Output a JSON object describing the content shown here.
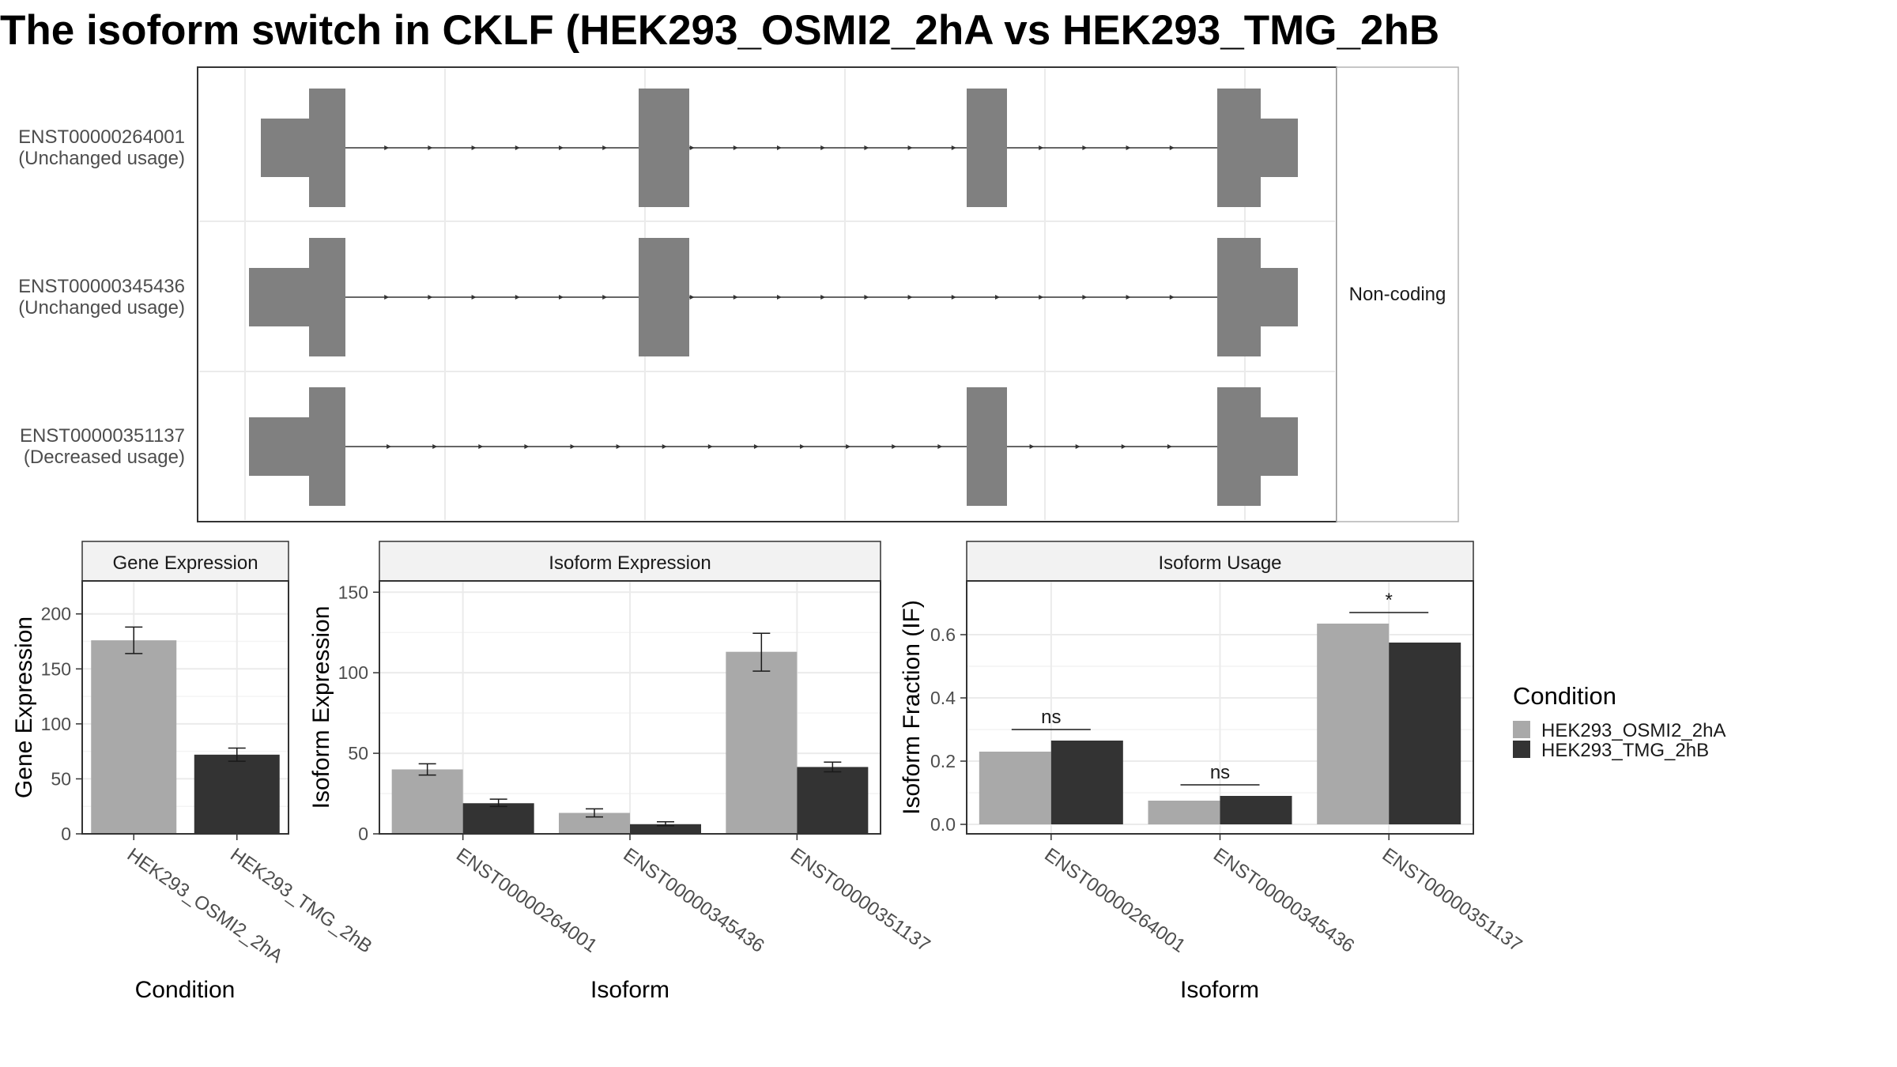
{
  "title": "The isoform switch in CKLF (HEK293_OSMI2_2hA vs HEK293_TMG_2hB",
  "colors": {
    "cond_a": "#a9a9a9",
    "cond_b": "#333333",
    "exon": "#808080",
    "grid": "#ebebeb",
    "strip": "#f2f2f2"
  },
  "structure": {
    "facet_label": "Non-coding",
    "isoforms": [
      {
        "id": "ENST00000264001",
        "usage": "(Unchanged usage)"
      },
      {
        "id": "ENST00000345436",
        "usage": "(Unchanged usage)"
      },
      {
        "id": "ENST00000351137",
        "usage": "(Decreased usage)"
      }
    ]
  },
  "legend": {
    "title": "Condition",
    "items": [
      "HEK293_OSMI2_2hA",
      "HEK293_TMG_2hB"
    ]
  },
  "chart_data": [
    {
      "type": "bar",
      "title": "Gene Expression",
      "xlabel": "Condition",
      "ylabel": "Gene Expression",
      "ylim": [
        0,
        230
      ],
      "yticks": [
        0,
        50,
        100,
        150,
        200
      ],
      "categories": [
        "HEK293_OSMI2_2hA",
        "HEK293_TMG_2hB"
      ],
      "values": [
        176,
        72
      ],
      "errors": [
        [
          164,
          188
        ],
        [
          66,
          78
        ]
      ]
    },
    {
      "type": "bar",
      "title": "Isoform Expression",
      "xlabel": "Isoform",
      "ylabel": "Isoform Expression",
      "ylim": [
        0,
        157
      ],
      "yticks": [
        0,
        50,
        100,
        150
      ],
      "categories": [
        "ENST00000264001",
        "ENST00000345436",
        "ENST00000351137"
      ],
      "series": [
        {
          "name": "HEK293_OSMI2_2hA",
          "values": [
            40,
            13,
            113
          ],
          "errors": [
            [
              36.5,
              43.5
            ],
            [
              10.5,
              15.5
            ],
            [
              101,
              124.5
            ]
          ]
        },
        {
          "name": "HEK293_TMG_2hB",
          "values": [
            19,
            6,
            41.5
          ],
          "errors": [
            [
              17,
              21.5
            ],
            [
              5,
              7.5
            ],
            [
              38.5,
              44.5
            ]
          ]
        }
      ]
    },
    {
      "type": "bar",
      "title": "Isoform Usage",
      "xlabel": "Isoform",
      "ylabel": "Isoform Fraction (IF)",
      "ylim": [
        -0.03,
        0.77
      ],
      "yticks": [
        0.0,
        0.2,
        0.4,
        0.6
      ],
      "categories": [
        "ENST00000264001",
        "ENST00000345436",
        "ENST00000351137"
      ],
      "series": [
        {
          "name": "HEK293_OSMI2_2hA",
          "values": [
            0.23,
            0.075,
            0.635
          ]
        },
        {
          "name": "HEK293_TMG_2hB",
          "values": [
            0.265,
            0.09,
            0.575
          ]
        }
      ],
      "annotations": [
        "ns",
        "ns",
        "*"
      ]
    }
  ]
}
